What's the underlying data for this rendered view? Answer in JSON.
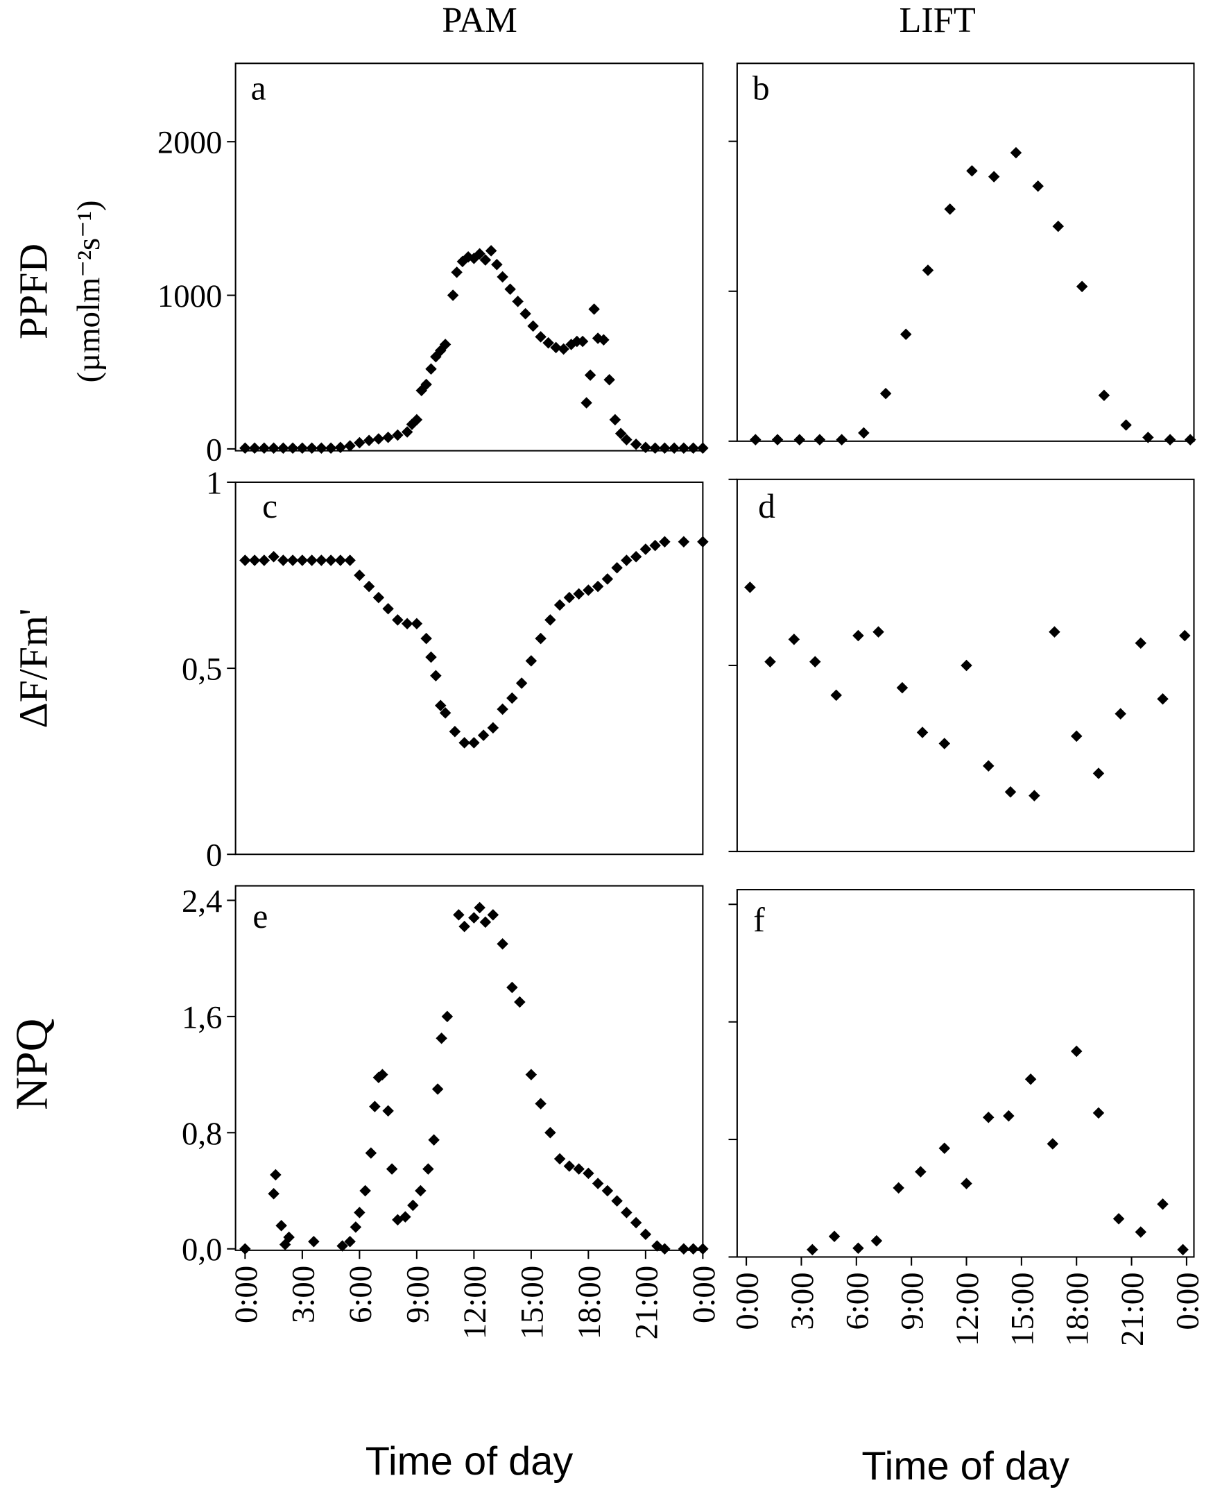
{
  "column_titles": [
    "PAM",
    "LIFT"
  ],
  "chart_data": [
    {
      "type": "scatter",
      "panel_label": "a",
      "ylabel": "PPFD",
      "ylabel_units": "(µmolm⁻²s⁻¹)",
      "color": "#000000",
      "x": [
        0,
        0.5,
        1,
        1.5,
        2,
        2.5,
        3,
        3.5,
        4,
        4.5,
        5,
        5.5,
        6,
        6.5,
        7,
        7.5,
        8,
        8.5,
        8.75,
        9,
        9.25,
        9.5,
        9.75,
        10,
        10.25,
        10.5,
        10.9,
        11.1,
        11.4,
        11.7,
        12,
        12.3,
        12.6,
        12.9,
        13.2,
        13.5,
        13.9,
        14.3,
        14.7,
        15.1,
        15.5,
        15.9,
        16.3,
        16.7,
        17.1,
        17.4,
        17.7,
        17.9,
        18.1,
        18.3,
        18.5,
        18.8,
        19.1,
        19.4,
        19.7,
        20,
        20.5,
        21,
        21.5,
        22,
        22.5,
        23,
        23.5,
        24
      ],
      "values": [
        5,
        5,
        5,
        5,
        5,
        5,
        5,
        5,
        5,
        5,
        10,
        20,
        40,
        55,
        65,
        75,
        90,
        110,
        160,
        190,
        380,
        420,
        520,
        600,
        640,
        680,
        1000,
        1150,
        1220,
        1250,
        1240,
        1270,
        1230,
        1290,
        1200,
        1120,
        1040,
        960,
        880,
        800,
        730,
        690,
        660,
        650,
        680,
        700,
        700,
        300,
        480,
        910,
        720,
        710,
        450,
        190,
        100,
        60,
        30,
        10,
        5,
        5,
        5,
        5,
        5,
        5
      ],
      "xlim": [
        -0.5,
        24
      ],
      "ylim": [
        -12,
        2510
      ],
      "yticks": [
        0,
        1000,
        2000
      ],
      "show_ytick_labels": true
    },
    {
      "type": "scatter",
      "panel_label": "b",
      "color": "#000000",
      "x": [
        0.5,
        1.7,
        2.9,
        4.0,
        5.2,
        6.4,
        7.6,
        8.7,
        9.9,
        11.1,
        12.3,
        13.5,
        14.7,
        15.9,
        17.0,
        18.3,
        19.5,
        20.7,
        21.9,
        23.1,
        24.2
      ],
      "values": [
        10,
        10,
        10,
        10,
        10,
        55,
        318,
        713,
        1140,
        1548,
        1803,
        1764,
        1924,
        1701,
        1433,
        1032,
        306,
        108,
        25,
        10,
        10
      ],
      "xlim": [
        -0.5,
        24.4
      ],
      "ylim": [
        0,
        2520
      ],
      "yticks": [
        0,
        1000,
        2000
      ],
      "show_ytick_labels": false
    },
    {
      "type": "scatter",
      "panel_label": "c",
      "ylabel": "ΔF/Fm'",
      "color": "#000000",
      "x": [
        0,
        0.5,
        1,
        1.5,
        2,
        2.5,
        3,
        3.5,
        4,
        4.5,
        5,
        5.5,
        6,
        6.5,
        7,
        7.5,
        8,
        8.5,
        9,
        9.5,
        9.75,
        10,
        10.25,
        10.5,
        11,
        11.5,
        12,
        12.5,
        13,
        13.5,
        14,
        14.5,
        15,
        15.5,
        16,
        16.5,
        17,
        17.5,
        18,
        18.5,
        19,
        19.5,
        20,
        20.5,
        21,
        21.5,
        22,
        23,
        24
      ],
      "values": [
        0.79,
        0.79,
        0.79,
        0.8,
        0.79,
        0.79,
        0.79,
        0.79,
        0.79,
        0.79,
        0.79,
        0.79,
        0.75,
        0.72,
        0.69,
        0.66,
        0.63,
        0.62,
        0.62,
        0.58,
        0.53,
        0.48,
        0.4,
        0.38,
        0.33,
        0.3,
        0.3,
        0.32,
        0.34,
        0.39,
        0.42,
        0.46,
        0.52,
        0.58,
        0.63,
        0.67,
        0.69,
        0.7,
        0.71,
        0.72,
        0.74,
        0.77,
        0.79,
        0.8,
        0.82,
        0.83,
        0.84,
        0.84,
        0.84
      ],
      "xlim": [
        -0.5,
        24
      ],
      "ylim": [
        0,
        1
      ],
      "yticks": [
        0,
        {
          "value": 0.5,
          "label": "0,5"
        },
        1
      ],
      "show_ytick_labels": true
    },
    {
      "type": "scatter",
      "panel_label": "d",
      "color": "#000000",
      "x": [
        0.2,
        1.3,
        2.6,
        3.75,
        4.9,
        6.1,
        7.2,
        8.5,
        9.6,
        10.8,
        12.0,
        13.2,
        14.4,
        15.7,
        16.8,
        18.0,
        19.2,
        20.4,
        21.5,
        22.7,
        23.9
      ],
      "values": [
        0.71,
        0.51,
        0.57,
        0.51,
        0.42,
        0.58,
        0.59,
        0.44,
        0.32,
        0.29,
        0.5,
        0.23,
        0.16,
        0.15,
        0.59,
        0.31,
        0.21,
        0.37,
        0.56,
        0.41,
        0.58
      ],
      "xlim": [
        -0.5,
        24.4
      ],
      "ylim": [
        0,
        1
      ],
      "yticks": [
        0,
        0.5,
        1
      ],
      "show_ytick_labels": false
    },
    {
      "type": "scatter",
      "panel_label": "e",
      "ylabel": "NPQ",
      "xlabel": "Time of day",
      "color": "#000000",
      "x": [
        0,
        1.5,
        1.6,
        1.9,
        2.1,
        2.3,
        3.6,
        5.1,
        5.5,
        5.8,
        6,
        6.3,
        6.6,
        6.8,
        7,
        7.2,
        7.5,
        7.7,
        8,
        8.4,
        8.8,
        9.2,
        9.6,
        9.9,
        10.1,
        10.3,
        10.6,
        11.2,
        11.5,
        12,
        12.3,
        12.6,
        13,
        13.5,
        14,
        14.4,
        15,
        15.5,
        16,
        16.5,
        17,
        17.5,
        18,
        18.5,
        19,
        19.5,
        20,
        20.5,
        21,
        21.6,
        22,
        23,
        23.5,
        24
      ],
      "values": [
        0,
        0.38,
        0.51,
        0.16,
        0.03,
        0.08,
        0.05,
        0.02,
        0.05,
        0.15,
        0.25,
        0.4,
        0.66,
        0.98,
        1.18,
        1.2,
        0.95,
        0.55,
        0.2,
        0.22,
        0.3,
        0.4,
        0.55,
        0.75,
        1.1,
        1.45,
        1.6,
        2.3,
        2.22,
        2.28,
        2.35,
        2.25,
        2.3,
        2.1,
        1.8,
        1.7,
        1.2,
        1.0,
        0.8,
        0.62,
        0.57,
        0.55,
        0.52,
        0.45,
        0.4,
        0.33,
        0.25,
        0.18,
        0.1,
        0.02,
        0,
        0,
        0,
        0
      ],
      "xlim": [
        -0.5,
        24
      ],
      "ylim": [
        -0.01,
        2.5
      ],
      "yticks": [
        {
          "value": 0,
          "label": "0,0"
        },
        {
          "value": 0.8,
          "label": "0,8"
        },
        {
          "value": 1.6,
          "label": "1,6"
        },
        {
          "value": 2.4,
          "label": "2,4"
        }
      ],
      "show_ytick_labels": true,
      "xticks": [
        {
          "value": 0,
          "label": "0:00"
        },
        {
          "value": 3,
          "label": "3:00"
        },
        {
          "value": 6,
          "label": "6:00"
        },
        {
          "value": 9,
          "label": "9:00"
        },
        {
          "value": 12,
          "label": "12:00"
        },
        {
          "value": 15,
          "label": "15:00"
        },
        {
          "value": 18,
          "label": "18:00"
        },
        {
          "value": 21,
          "label": "21:00"
        },
        {
          "value": 24,
          "label": "0:00"
        }
      ]
    },
    {
      "type": "scatter",
      "panel_label": "f",
      "xlabel": "Time of day",
      "color": "#000000",
      "x": [
        3.6,
        4.8,
        6.1,
        7.1,
        8.3,
        9.5,
        10.8,
        12.0,
        13.2,
        14.3,
        15.5,
        16.7,
        18.0,
        19.2,
        20.3,
        21.5,
        22.7,
        23.8
      ],
      "values": [
        0.05,
        0.14,
        0.06,
        0.11,
        0.47,
        0.58,
        0.74,
        0.5,
        0.95,
        0.96,
        1.21,
        0.77,
        1.4,
        0.98,
        0.26,
        0.17,
        0.36,
        0.05
      ],
      "xlim": [
        -0.5,
        24.4
      ],
      "ylim": [
        0,
        2.5
      ],
      "yticks": [
        0,
        0.8,
        1.6,
        2.4
      ],
      "show_ytick_labels": false,
      "xticks": [
        {
          "value": 0,
          "label": "0:00"
        },
        {
          "value": 3,
          "label": "3:00"
        },
        {
          "value": 6,
          "label": "6:00"
        },
        {
          "value": 9,
          "label": "9:00"
        },
        {
          "value": 12,
          "label": "12:00"
        },
        {
          "value": 15,
          "label": "15:00"
        },
        {
          "value": 18,
          "label": "18:00"
        },
        {
          "value": 21,
          "label": "21:00"
        },
        {
          "value": 24,
          "label": "0:00"
        }
      ]
    }
  ]
}
